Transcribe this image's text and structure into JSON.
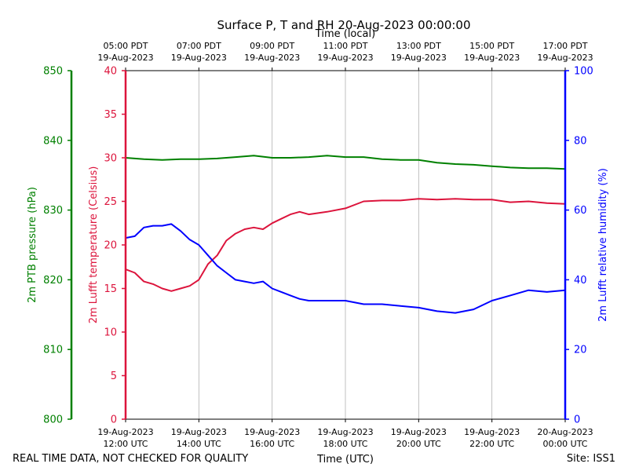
{
  "chart_data": {
    "type": "line",
    "title": "Surface P, T and RH 20-Aug-2023 00:00:00",
    "top_axis_label": "Time (local)",
    "x_label": "Time (UTC)",
    "x_range_hours": [
      0,
      12
    ],
    "x_ticks": [
      {
        "hour": 0,
        "utc_date": "19-Aug-2023",
        "utc_time": "12:00 UTC",
        "local_time": "05:00 PDT",
        "local_date": "19-Aug-2023"
      },
      {
        "hour": 2,
        "utc_date": "19-Aug-2023",
        "utc_time": "14:00 UTC",
        "local_time": "07:00 PDT",
        "local_date": "19-Aug-2023"
      },
      {
        "hour": 4,
        "utc_date": "19-Aug-2023",
        "utc_time": "16:00 UTC",
        "local_time": "09:00 PDT",
        "local_date": "19-Aug-2023"
      },
      {
        "hour": 6,
        "utc_date": "19-Aug-2023",
        "utc_time": "18:00 UTC",
        "local_time": "11:00 PDT",
        "local_date": "19-Aug-2023"
      },
      {
        "hour": 8,
        "utc_date": "19-Aug-2023",
        "utc_time": "20:00 UTC",
        "local_time": "13:00 PDT",
        "local_date": "19-Aug-2023"
      },
      {
        "hour": 10,
        "utc_date": "19-Aug-2023",
        "utc_time": "22:00 UTC",
        "local_time": "15:00 PDT",
        "local_date": "19-Aug-2023"
      },
      {
        "hour": 12,
        "utc_date": "20-Aug-2023",
        "utc_time": "00:00 UTC",
        "local_time": "17:00 PDT",
        "local_date": "19-Aug-2023"
      }
    ],
    "axes": {
      "pressure": {
        "label": "2m PTB pressure (hPa)",
        "range": [
          800,
          850
        ],
        "ticks": [
          800,
          810,
          820,
          830,
          840,
          850
        ],
        "color": "#008000"
      },
      "temperature": {
        "label": "2m Lufft temperature (Celsius)",
        "range": [
          0,
          40
        ],
        "ticks": [
          0,
          5,
          10,
          15,
          20,
          25,
          30,
          35,
          40
        ],
        "color": "#dc143c"
      },
      "humidity": {
        "label": "2m Lufft relative humidity (%)",
        "range": [
          0,
          100
        ],
        "ticks": [
          0,
          20,
          40,
          60,
          80,
          100
        ],
        "color": "#0000ff"
      }
    },
    "series": [
      {
        "name": "Pressure",
        "axis": "pressure",
        "color": "#008000",
        "x": [
          0,
          0.5,
          1,
          1.5,
          2,
          2.5,
          3,
          3.5,
          4,
          4.5,
          5,
          5.5,
          6,
          6.5,
          7,
          7.5,
          8,
          8.5,
          9,
          9.5,
          10,
          10.5,
          11,
          11.5,
          12
        ],
        "y": [
          837.5,
          837.3,
          837.2,
          837.3,
          837.3,
          837.4,
          837.6,
          837.8,
          837.5,
          837.5,
          837.6,
          837.8,
          837.6,
          837.6,
          837.3,
          837.2,
          837.2,
          836.8,
          836.6,
          836.5,
          836.3,
          836.1,
          836.0,
          836.0,
          835.9
        ]
      },
      {
        "name": "Temperature",
        "axis": "temperature",
        "color": "#dc143c",
        "x": [
          0,
          0.25,
          0.5,
          0.75,
          1,
          1.25,
          1.5,
          1.75,
          2,
          2.25,
          2.5,
          2.75,
          3,
          3.25,
          3.5,
          3.75,
          4,
          4.25,
          4.5,
          4.75,
          5,
          5.5,
          6,
          6.5,
          7,
          7.5,
          8,
          8.5,
          9,
          9.5,
          10,
          10.5,
          11,
          11.5,
          12
        ],
        "y": [
          17.2,
          16.8,
          15.8,
          15.5,
          15.0,
          14.7,
          15.0,
          15.3,
          16.0,
          17.8,
          18.8,
          20.5,
          21.3,
          21.8,
          22.0,
          21.8,
          22.5,
          23.0,
          23.5,
          23.8,
          23.5,
          23.8,
          24.2,
          25.0,
          25.1,
          25.1,
          25.3,
          25.2,
          25.3,
          25.2,
          25.2,
          24.9,
          25.0,
          24.8,
          24.7
        ]
      },
      {
        "name": "Relative humidity",
        "axis": "humidity",
        "color": "#0000ff",
        "x": [
          0,
          0.25,
          0.5,
          0.75,
          1,
          1.25,
          1.5,
          1.75,
          2,
          2.25,
          2.5,
          2.75,
          3,
          3.25,
          3.5,
          3.75,
          4,
          4.25,
          4.5,
          4.75,
          5,
          5.5,
          6,
          6.5,
          7,
          7.5,
          8,
          8.5,
          9,
          9.5,
          10,
          10.5,
          11,
          11.5,
          12
        ],
        "y": [
          52,
          52.5,
          55,
          55.5,
          55.5,
          56,
          54,
          51.5,
          50,
          47,
          44,
          42,
          40,
          39.5,
          39,
          39.5,
          37.5,
          36.5,
          35.5,
          34.5,
          34,
          34,
          34,
          33,
          33,
          32.5,
          32,
          31,
          30.5,
          31.5,
          34,
          35.5,
          37,
          36.5,
          37
        ]
      }
    ],
    "footer_left": "REAL TIME DATA, NOT CHECKED FOR QUALITY",
    "footer_right": "Site: ISS1"
  }
}
